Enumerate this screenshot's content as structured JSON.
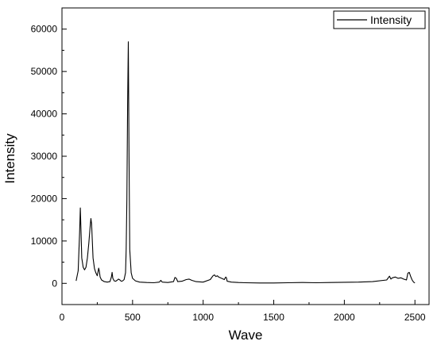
{
  "chart_data": {
    "type": "line",
    "xlabel": "Wave",
    "ylabel": "Intensity",
    "xlim": [
      0,
      2600
    ],
    "ylim": [
      -5000,
      65000
    ],
    "x_ticks": [
      0,
      500,
      1000,
      1500,
      2000,
      2500
    ],
    "y_ticks": [
      0,
      10000,
      20000,
      30000,
      40000,
      50000,
      60000
    ],
    "x_tick_labels": [
      "0",
      "500",
      "1000",
      "1500",
      "2000",
      "2500"
    ],
    "y_tick_labels": [
      "0",
      "10000",
      "20000",
      "30000",
      "40000",
      "50000",
      "60000"
    ],
    "grid": false,
    "legend": {
      "position": "top-right",
      "entries": [
        "Intensity"
      ]
    },
    "series": [
      {
        "name": "Intensity",
        "color": "#000000",
        "x": [
          100,
          115,
          125,
          130,
          135,
          140,
          150,
          160,
          170,
          180,
          190,
          200,
          205,
          210,
          215,
          220,
          230,
          240,
          250,
          260,
          265,
          270,
          280,
          300,
          320,
          340,
          350,
          355,
          360,
          370,
          380,
          390,
          400,
          410,
          420,
          430,
          440,
          450,
          455,
          460,
          465,
          468,
          470,
          475,
          480,
          490,
          500,
          520,
          550,
          600,
          650,
          690,
          700,
          710,
          750,
          790,
          800,
          810,
          820,
          850,
          880,
          900,
          920,
          950,
          1000,
          1050,
          1070,
          1080,
          1090,
          1100,
          1110,
          1130,
          1150,
          1160,
          1165,
          1170,
          1200,
          1250,
          1300,
          1400,
          1500,
          1600,
          1700,
          1800,
          1900,
          2000,
          2100,
          2200,
          2300,
          2320,
          2330,
          2340,
          2360,
          2380,
          2400,
          2420,
          2440,
          2450,
          2460,
          2470,
          2480,
          2490,
          2500
        ],
        "y": [
          600,
          3000,
          12000,
          17800,
          12000,
          6000,
          3800,
          3200,
          3800,
          6000,
          9500,
          13500,
          15300,
          14000,
          10000,
          6000,
          3500,
          2500,
          1800,
          3600,
          2800,
          1500,
          800,
          400,
          300,
          400,
          1500,
          2600,
          1200,
          600,
          500,
          700,
          1000,
          800,
          500,
          600,
          900,
          2500,
          8000,
          20000,
          42000,
          52000,
          57000,
          30000,
          8000,
          2500,
          1200,
          600,
          300,
          200,
          150,
          300,
          700,
          300,
          200,
          400,
          1400,
          1200,
          400,
          500,
          900,
          1000,
          700,
          400,
          300,
          900,
          1800,
          2000,
          1600,
          1800,
          1500,
          1200,
          900,
          1500,
          1300,
          500,
          300,
          200,
          150,
          100,
          100,
          150,
          200,
          150,
          200,
          250,
          300,
          400,
          800,
          1700,
          1000,
          1300,
          1500,
          1200,
          1300,
          1000,
          800,
          2400,
          2600,
          1600,
          800,
          300,
          100
        ]
      }
    ]
  }
}
